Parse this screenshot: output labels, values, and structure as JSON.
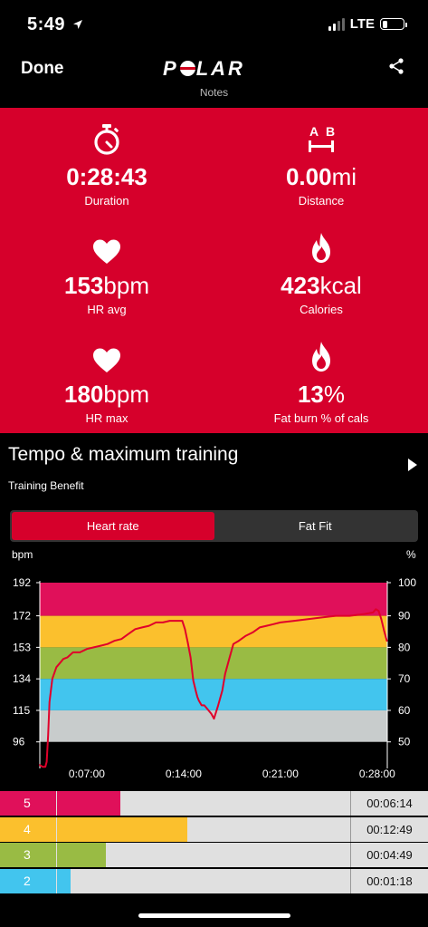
{
  "status": {
    "time": "5:49",
    "network": "LTE"
  },
  "nav": {
    "done_label": "Done",
    "brand": "POLAR"
  },
  "notes_label": "Notes",
  "stats": [
    {
      "icon": "stopwatch-icon",
      "value": "0:28:43",
      "unit": "",
      "label": "Duration"
    },
    {
      "icon": "distance-icon",
      "value": "0.00",
      "unit": "mi",
      "label": "Distance"
    },
    {
      "icon": "heart-icon",
      "value": "153",
      "unit": "bpm",
      "label": "HR avg"
    },
    {
      "icon": "flame-icon",
      "value": "423",
      "unit": "kcal",
      "label": "Calories"
    },
    {
      "icon": "heart-icon",
      "value": "180",
      "unit": "bpm",
      "label": "HR max"
    },
    {
      "icon": "flame-icon",
      "value": "13",
      "unit": "%",
      "label": "Fat burn % of cals"
    }
  ],
  "distance_icon_letters": {
    "a": "A",
    "b": "B"
  },
  "training": {
    "title": "Tempo & maximum training",
    "subtitle": "Training Benefit"
  },
  "toggle": {
    "option1": "Heart rate",
    "option2": "Fat Fit"
  },
  "colors": {
    "brand_red": "#d6002b",
    "zone5": "#e0105a",
    "zone4": "#fbc02d",
    "zone3": "#99bb44",
    "zone2": "#42c5ee",
    "zone1": "#c8cccc",
    "line": "#e0002a"
  },
  "chart_data": {
    "type": "line",
    "ylabel_left": "bpm",
    "ylabel_right": "%",
    "y_left_ticks": [
      "192",
      "172",
      "153",
      "134",
      "115",
      "96"
    ],
    "y_right_ticks": [
      "100",
      "90",
      "80",
      "70",
      "60",
      "50"
    ],
    "x_tick_labels": [
      "0:07:00",
      "0:14:00",
      "0:21:00",
      "0:28:00"
    ],
    "x_tick_minutes": [
      7,
      14,
      21,
      28
    ],
    "x_range_minutes": [
      3.6,
      28.73
    ],
    "y_range_bpm": [
      80,
      192
    ],
    "zones_bpm": [
      {
        "zone": "5",
        "from": 172,
        "to": 192
      },
      {
        "zone": "4",
        "from": 153,
        "to": 172
      },
      {
        "zone": "3",
        "from": 134,
        "to": 153
      },
      {
        "zone": "2",
        "from": 115,
        "to": 134
      },
      {
        "zone": "1",
        "from": 96,
        "to": 115
      }
    ],
    "series": [
      {
        "x": [
          3.6,
          3.8,
          4.0,
          4.1,
          4.2,
          4.3,
          4.5,
          4.8,
          5.0,
          5.3,
          5.6,
          6.0,
          6.5,
          7.0,
          7.5,
          8.0,
          8.5,
          9.0,
          9.5,
          10.0,
          10.5,
          11.0,
          11.5,
          12.0,
          12.5,
          13.0,
          13.5,
          13.9,
          14.1,
          14.3,
          14.5,
          14.7,
          14.9,
          15.0,
          15.1,
          15.3,
          15.5,
          15.8,
          16.0,
          16.2,
          16.5,
          16.8,
          17.0,
          17.3,
          17.6,
          18.0,
          18.5,
          19.0,
          19.5,
          20.0,
          20.5,
          21.0,
          22.0,
          23.0,
          24.0,
          25.0,
          26.0,
          27.0,
          27.7,
          27.9,
          28.1,
          28.3,
          28.5,
          28.7
        ],
        "y": [
          82,
          81,
          81,
          84,
          100,
          120,
          134,
          141,
          143,
          146,
          147,
          150,
          150,
          152,
          153,
          154,
          155,
          157,
          158,
          161,
          164,
          165,
          166,
          168,
          168,
          169,
          169,
          169,
          164,
          156,
          147,
          133,
          126,
          123,
          121,
          118,
          118,
          115,
          113,
          110,
          118,
          127,
          137,
          146,
          155,
          157,
          160,
          162,
          165,
          166,
          167,
          168,
          169,
          170,
          171,
          172,
          172,
          173,
          174,
          176,
          175,
          170,
          163,
          157
        ]
      }
    ]
  },
  "zone_summary": [
    {
      "zone": "5",
      "time": "00:06:14",
      "fraction": 0.217,
      "color": "#e0105a"
    },
    {
      "zone": "4",
      "time": "00:12:49",
      "fraction": 0.446,
      "color": "#fbc02d"
    },
    {
      "zone": "3",
      "time": "00:04:49",
      "fraction": 0.168,
      "color": "#99bb44"
    },
    {
      "zone": "2",
      "time": "00:01:18",
      "fraction": 0.045,
      "color": "#42c5ee"
    }
  ]
}
